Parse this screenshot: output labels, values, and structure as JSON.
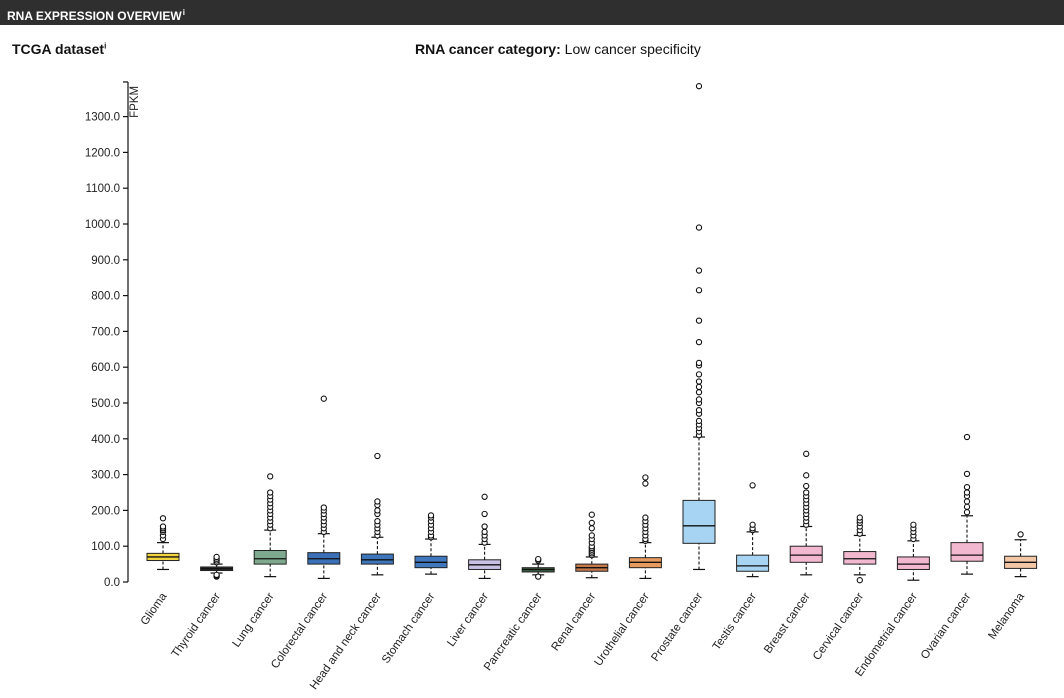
{
  "header": {
    "title": "RNA EXPRESSION OVERVIEW",
    "info_mark": "i"
  },
  "dataset": {
    "label": "TCGA dataset",
    "info_mark": "i"
  },
  "category": {
    "label": "RNA cancer category:",
    "value": "Low cancer specificity"
  },
  "chart_data": {
    "type": "box",
    "ylabel": "FPKM",
    "ylim": [
      0,
      1380
    ],
    "yticks": [
      "0.0",
      "100.0",
      "200.0",
      "300.0",
      "400.0",
      "500.0",
      "600.0",
      "700.0",
      "800.0",
      "900.0",
      "1000.0",
      "1100.0",
      "1200.0",
      "1300.0"
    ],
    "categories": [
      "Glioma",
      "Thyroid cancer",
      "Lung cancer",
      "Colorectal cancer",
      "Head and neck cancer",
      "Stomach cancer",
      "Liver cancer",
      "Pancreatic cancer",
      "Renal cancer",
      "Urothelial cancer",
      "Prostate cancer",
      "Testis cancer",
      "Breast cancer",
      "Cervical cancer",
      "Endometrial cancer",
      "Ovarian cancer",
      "Melanoma"
    ],
    "colors": [
      "#f2d53c",
      "#2f2f2f",
      "#7ea98e",
      "#3b6fb6",
      "#3d75bb",
      "#3f78bf",
      "#c9c1e4",
      "#3d5d3f",
      "#c6794a",
      "#e69a5d",
      "#a7d4f2",
      "#a7d4f2",
      "#f2b8cf",
      "#f2b8cf",
      "#f2b8cf",
      "#f2b8cf",
      "#f3c7a6"
    ],
    "boxes": [
      {
        "whisker_low": 35,
        "q1": 60,
        "median": 70,
        "q3": 80,
        "whisker_high": 110,
        "outliers": [
          120,
          130,
          140,
          145,
          150,
          155,
          178
        ]
      },
      {
        "whisker_low": 25,
        "q1": 32,
        "median": 37,
        "q3": 42,
        "whisker_high": 50,
        "outliers": [
          15,
          18,
          20,
          55,
          60,
          65,
          70
        ]
      },
      {
        "whisker_low": 15,
        "q1": 50,
        "median": 65,
        "q3": 88,
        "whisker_high": 145,
        "outliers": [
          150,
          160,
          170,
          180,
          190,
          200,
          210,
          220,
          230,
          240,
          250,
          295
        ]
      },
      {
        "whisker_low": 10,
        "q1": 50,
        "median": 65,
        "q3": 82,
        "whisker_high": 135,
        "outliers": [
          140,
          150,
          160,
          170,
          180,
          190,
          200,
          208,
          512
        ]
      },
      {
        "whisker_low": 20,
        "q1": 50,
        "median": 62,
        "q3": 78,
        "whisker_high": 125,
        "outliers": [
          130,
          140,
          150,
          160,
          170,
          190,
          200,
          215,
          225,
          352
        ]
      },
      {
        "whisker_low": 22,
        "q1": 40,
        "median": 55,
        "q3": 72,
        "whisker_high": 120,
        "outliers": [
          125,
          130,
          140,
          150,
          160,
          170,
          180,
          186
        ]
      },
      {
        "whisker_low": 10,
        "q1": 35,
        "median": 48,
        "q3": 62,
        "whisker_high": 105,
        "outliers": [
          110,
          120,
          130,
          140,
          155,
          190,
          238
        ]
      },
      {
        "whisker_low": 20,
        "q1": 28,
        "median": 35,
        "q3": 40,
        "whisker_high": 50,
        "outliers": [
          15,
          60,
          64
        ]
      },
      {
        "whisker_low": 12,
        "q1": 30,
        "median": 40,
        "q3": 50,
        "whisker_high": 70,
        "outliers": [
          75,
          80,
          85,
          90,
          95,
          100,
          110,
          120,
          130,
          150,
          165,
          188
        ]
      },
      {
        "whisker_low": 10,
        "q1": 40,
        "median": 55,
        "q3": 68,
        "whisker_high": 110,
        "outliers": [
          115,
          120,
          130,
          140,
          150,
          160,
          170,
          180,
          275,
          292
        ]
      },
      {
        "whisker_low": 35,
        "q1": 108,
        "median": 157,
        "q3": 228,
        "whisker_high": 405,
        "outliers": [
          410,
          420,
          430,
          440,
          450,
          470,
          480,
          500,
          510,
          530,
          545,
          560,
          580,
          605,
          612,
          670,
          730,
          815,
          870,
          990,
          1385
        ]
      },
      {
        "whisker_low": 15,
        "q1": 30,
        "median": 45,
        "q3": 75,
        "whisker_high": 140,
        "outliers": [
          145,
          150,
          160,
          270
        ]
      },
      {
        "whisker_low": 20,
        "q1": 55,
        "median": 75,
        "q3": 100,
        "whisker_high": 155,
        "outliers": [
          160,
          170,
          180,
          190,
          200,
          210,
          220,
          230,
          240,
          250,
          268,
          298,
          358
        ]
      },
      {
        "whisker_low": 20,
        "q1": 50,
        "median": 65,
        "q3": 85,
        "whisker_high": 130,
        "outliers": [
          5,
          135,
          145,
          155,
          165,
          172,
          180
        ]
      },
      {
        "whisker_low": 5,
        "q1": 35,
        "median": 50,
        "q3": 70,
        "whisker_high": 115,
        "outliers": [
          120,
          130,
          140,
          150,
          160
        ]
      },
      {
        "whisker_low": 22,
        "q1": 58,
        "median": 75,
        "q3": 110,
        "whisker_high": 185,
        "outliers": [
          195,
          210,
          225,
          240,
          250,
          265,
          302,
          405
        ]
      },
      {
        "whisker_low": 15,
        "q1": 38,
        "median": 55,
        "q3": 72,
        "whisker_high": 118,
        "outliers": [
          133
        ]
      }
    ]
  }
}
